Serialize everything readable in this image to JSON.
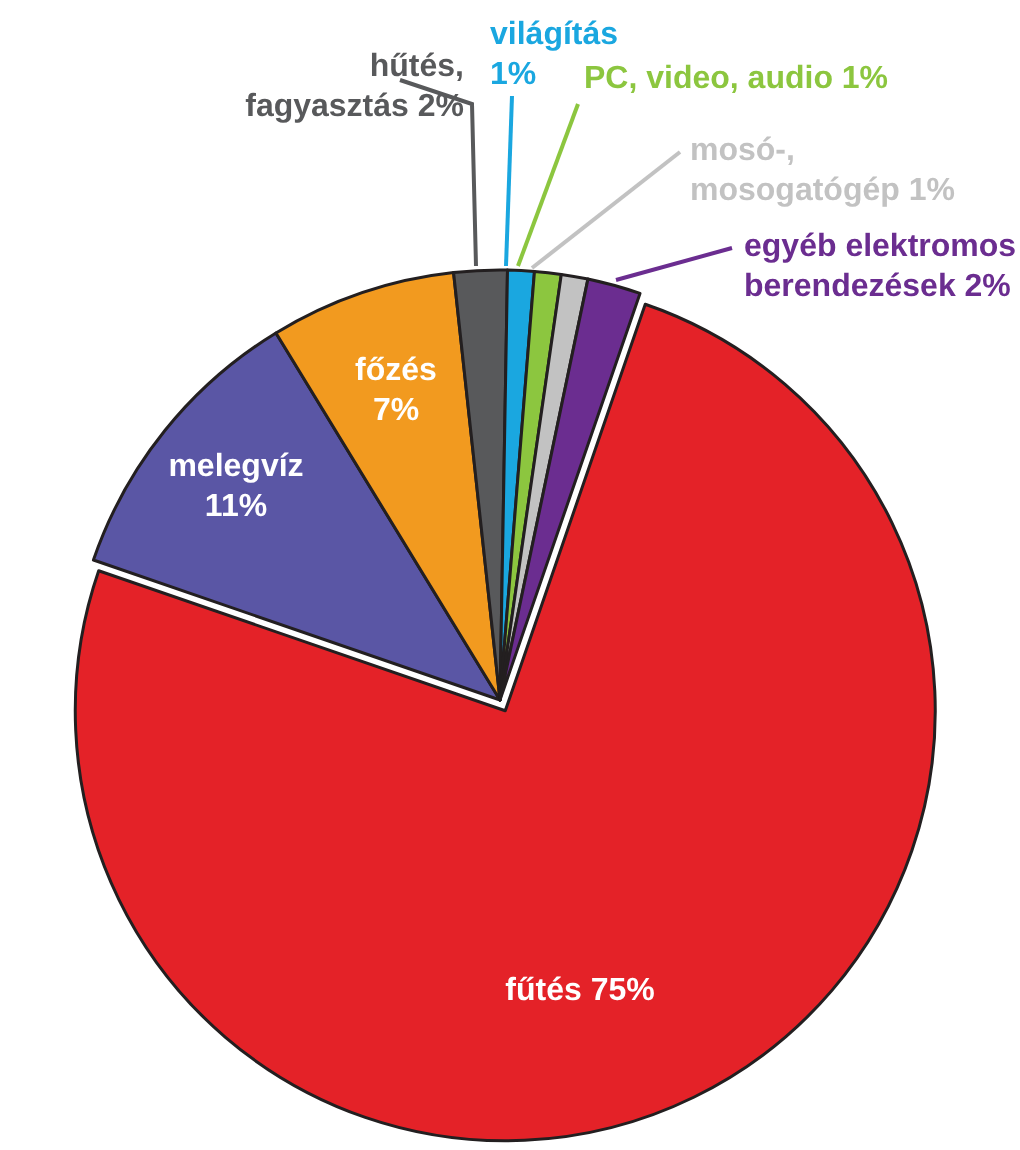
{
  "chart_data": {
    "type": "pie",
    "categories": [
      "fűtés",
      "melegvíz",
      "főzés",
      "hűtés, fagyasztás",
      "világítás",
      "PC, video, audio",
      "mosó-, mosogatógép",
      "egyéb elektromos berendezések"
    ],
    "values": [
      75,
      11,
      7,
      2,
      1,
      1,
      1,
      2
    ],
    "colors": [
      "#e42228",
      "#5a56a5",
      "#f29a1f",
      "#58595b",
      "#1aa7e0",
      "#8cc63f",
      "#c2c2c2",
      "#6b2d90"
    ],
    "value_labels": [
      "75%",
      "11%",
      "7%",
      "2%",
      "1%",
      "1%",
      "1%",
      "2%"
    ]
  }
}
